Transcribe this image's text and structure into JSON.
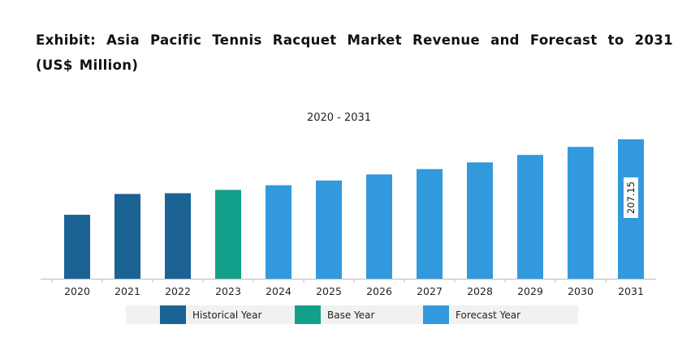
{
  "title": "Exhibit: Asia Pacific Tennis Racquet Market Revenue and Forecast to 2031 (US$ Million)",
  "subtitle": "2020 - 2031",
  "colors": {
    "historical": "#1a6394",
    "base": "#13a08a",
    "forecast": "#3399dd",
    "axis": "#bbbbbb",
    "legend_bg": "#f1f1f1"
  },
  "legend": [
    {
      "label": "Historical Year",
      "color": "#1a6394"
    },
    {
      "label": "Base Year",
      "color": "#13a08a"
    },
    {
      "label": "Forecast Year",
      "color": "#3399dd"
    }
  ],
  "chart_data": {
    "type": "bar",
    "title": "Exhibit: Asia Pacific Tennis Racquet Market Revenue and Forecast to 2031 (US$ Million)",
    "subtitle": "2020 - 2031",
    "categories": [
      "2020",
      "2021",
      "2022",
      "2023",
      "2024",
      "2025",
      "2026",
      "2027",
      "2028",
      "2029",
      "2030",
      "2031"
    ],
    "values": [
      95,
      126,
      127,
      132,
      139,
      146,
      155,
      163,
      173,
      184,
      196,
      207.15
    ],
    "period": [
      "historical",
      "historical",
      "historical",
      "base",
      "forecast",
      "forecast",
      "forecast",
      "forecast",
      "forecast",
      "forecast",
      "forecast",
      "forecast"
    ],
    "data_labels": [
      null,
      null,
      null,
      null,
      null,
      null,
      null,
      null,
      null,
      null,
      null,
      "207.15"
    ],
    "ylim": [
      0,
      207.15
    ],
    "xlabel": "",
    "ylabel": "",
    "grid": false,
    "legend_position": "bottom"
  }
}
